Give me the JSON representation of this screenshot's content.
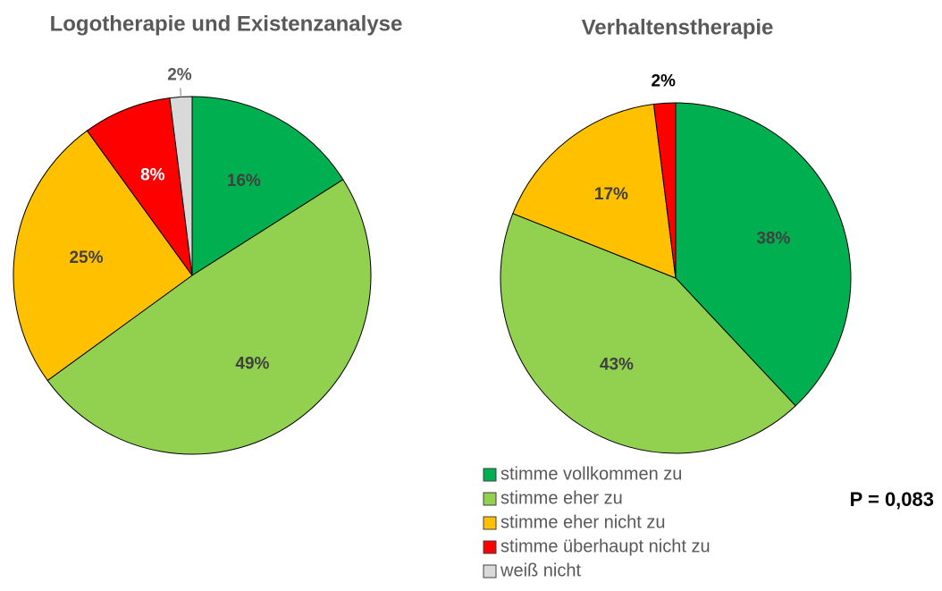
{
  "chart_data": [
    {
      "type": "pie",
      "title": "Logotherapie und Existenzanalyse",
      "categories": [
        "stimme vollkommen zu",
        "stimme eher zu",
        "stimme eher nicht zu",
        "stimme überhaupt nicht zu",
        "weiß nicht"
      ],
      "values": [
        16,
        49,
        25,
        8,
        2
      ],
      "value_labels": [
        "16%",
        "49%",
        "25%",
        "8%",
        "2%"
      ],
      "colors": [
        "#00b050",
        "#92d050",
        "#ffc000",
        "#ff0000",
        "#d9d9d9"
      ],
      "value_label_colors": [
        "#404040",
        "#404040",
        "#404040",
        "#ffffff",
        "#595959"
      ],
      "legend": true
    },
    {
      "type": "pie",
      "title": "Verhaltenstherapie",
      "categories": [
        "stimme vollkommen zu",
        "stimme eher zu",
        "stimme eher nicht zu",
        "stimme überhaupt nicht zu"
      ],
      "values": [
        38,
        43,
        17,
        2
      ],
      "value_labels": [
        "38%",
        "43%",
        "17%",
        "2%"
      ],
      "colors": [
        "#00b050",
        "#92d050",
        "#ffc000",
        "#ff0000"
      ],
      "value_label_colors": [
        "#404040",
        "#404040",
        "#404040",
        "#000000"
      ],
      "annotation": "P = 0,083"
    }
  ]
}
